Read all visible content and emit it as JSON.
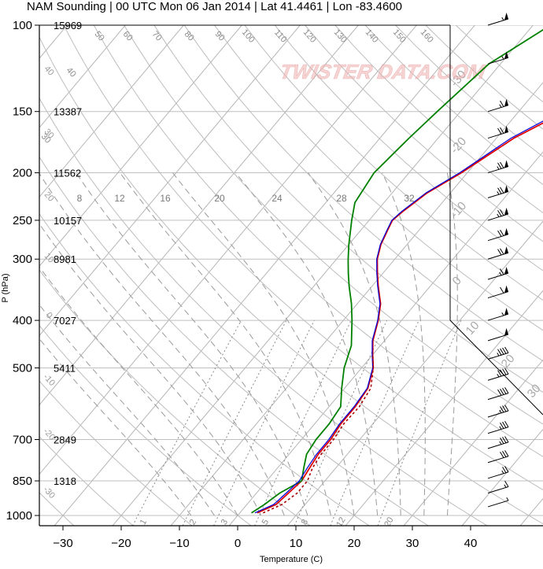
{
  "title": "NAM Sounding | 00 UTC Mon 06 Jan 2014 | Lat 41.4461 | Lon -83.4600",
  "watermark": "TWISTER DATA.COM",
  "chart_data": {
    "type": "line",
    "subtype": "skew-T log-P sounding",
    "xlabel": "Temperature (C)",
    "ylabel": "P (hPa)",
    "x_ticks": [
      -30,
      -20,
      -10,
      0,
      10,
      20,
      30,
      40
    ],
    "y_ticks": [
      100,
      150,
      200,
      250,
      300,
      400,
      500,
      700,
      850,
      1000
    ],
    "heights_m": [
      {
        "p": 100,
        "label": "15969"
      },
      {
        "p": 150,
        "label": "13387"
      },
      {
        "p": 200,
        "label": "11562"
      },
      {
        "p": 250,
        "label": "10157"
      },
      {
        "p": 300,
        "label": "8981"
      },
      {
        "p": 400,
        "label": "7027"
      },
      {
        "p": 500,
        "label": "5411"
      },
      {
        "p": 700,
        "label": "2849"
      },
      {
        "p": 850,
        "label": "1318"
      }
    ],
    "dry_adiabat_labels": [
      "30",
      "40",
      "50",
      "60",
      "70",
      "80",
      "90",
      "100",
      "110",
      "120",
      "130",
      "140",
      "150",
      "160"
    ],
    "isotherm_skewed_labels": [
      "-30",
      "-20",
      "-10",
      "0",
      "10",
      "20",
      "30"
    ],
    "left_isotherm_labels": [
      "40",
      "30",
      "20",
      "10",
      "0",
      "-10",
      "-20",
      "-30"
    ],
    "moist_adiabat_labels": [
      "8",
      "12",
      "16",
      "20",
      "24",
      "28",
      "32"
    ],
    "mixing_ratio_labels": [
      "1",
      "2",
      "3",
      "5",
      "8",
      "12",
      "20"
    ],
    "series": [
      {
        "name": "Temperature",
        "color": "#e00000",
        "points": [
          [
            988,
            3
          ],
          [
            950,
            5
          ],
          [
            900,
            5.5
          ],
          [
            850,
            6
          ],
          [
            800,
            5.5
          ],
          [
            750,
            5
          ],
          [
            700,
            5
          ],
          [
            650,
            4.5
          ],
          [
            600,
            4.5
          ],
          [
            550,
            4
          ],
          [
            500,
            2
          ],
          [
            470,
            0
          ],
          [
            440,
            -2
          ],
          [
            400,
            -4
          ],
          [
            370,
            -6
          ],
          [
            340,
            -9
          ],
          [
            320,
            -11
          ],
          [
            300,
            -13
          ],
          [
            280,
            -14.5
          ],
          [
            260,
            -15.5
          ],
          [
            250,
            -16
          ],
          [
            240,
            -15.5
          ],
          [
            220,
            -14
          ],
          [
            200,
            -11
          ],
          [
            170,
            -7
          ],
          [
            150,
            -2
          ],
          [
            120,
            4
          ],
          [
            100,
            12
          ]
        ]
      },
      {
        "name": "Dewpoint",
        "color": "#008000",
        "points": [
          [
            988,
            2
          ],
          [
            950,
            3
          ],
          [
            900,
            4
          ],
          [
            850,
            6
          ],
          [
            800,
            4.5
          ],
          [
            750,
            3
          ],
          [
            700,
            2.5
          ],
          [
            650,
            2.5
          ],
          [
            600,
            2
          ],
          [
            550,
            -0.5
          ],
          [
            500,
            -3
          ],
          [
            450,
            -5
          ],
          [
            400,
            -8.5
          ],
          [
            370,
            -11
          ],
          [
            340,
            -14
          ],
          [
            320,
            -16
          ],
          [
            300,
            -18
          ],
          [
            280,
            -20
          ],
          [
            250,
            -23
          ],
          [
            230,
            -25
          ],
          [
            200,
            -26
          ],
          [
            170,
            -25
          ],
          [
            150,
            -24
          ],
          [
            120,
            -22
          ],
          [
            100,
            -17
          ]
        ]
      },
      {
        "name": "Virtual temperature",
        "color": "#0000dd",
        "points": [
          [
            988,
            2.6
          ],
          [
            950,
            4.6
          ],
          [
            900,
            5.1
          ],
          [
            850,
            5.6
          ],
          [
            800,
            5.1
          ],
          [
            750,
            4.7
          ],
          [
            700,
            4.7
          ],
          [
            650,
            4.3
          ],
          [
            600,
            4.3
          ],
          [
            550,
            3.9
          ],
          [
            500,
            1.9
          ],
          [
            470,
            -0.1
          ],
          [
            440,
            -2.1
          ],
          [
            400,
            -4.1
          ],
          [
            370,
            -6.1
          ],
          [
            340,
            -9.1
          ],
          [
            320,
            -11.1
          ],
          [
            300,
            -13.1
          ],
          [
            280,
            -14.6
          ],
          [
            260,
            -15.6
          ],
          [
            250,
            -16.1
          ],
          [
            240,
            -15.7
          ],
          [
            220,
            -14.2
          ],
          [
            200,
            -11.3
          ],
          [
            170,
            -7.5
          ],
          [
            150,
            -2.7
          ],
          [
            120,
            3.2
          ],
          [
            100,
            11.2
          ]
        ]
      },
      {
        "name": "Parcel",
        "color": "#aa0000",
        "dashed": true,
        "points": [
          [
            988,
            4
          ],
          [
            950,
            6
          ],
          [
            900,
            7
          ],
          [
            850,
            7
          ],
          [
            800,
            6
          ],
          [
            750,
            5.5
          ],
          [
            700,
            5.5
          ],
          [
            650,
            5
          ],
          [
            600,
            5.2
          ],
          [
            550,
            4.5
          ],
          [
            500,
            2
          ],
          [
            470,
            0
          ]
        ]
      }
    ],
    "wind_barbs": [
      {
        "p": 100,
        "spd": 55
      },
      {
        "p": 120,
        "spd": 55
      },
      {
        "p": 150,
        "spd": 65
      },
      {
        "p": 170,
        "spd": 70
      },
      {
        "p": 200,
        "spd": 75
      },
      {
        "p": 225,
        "spd": 75
      },
      {
        "p": 250,
        "spd": 75
      },
      {
        "p": 275,
        "spd": 70
      },
      {
        "p": 300,
        "spd": 70
      },
      {
        "p": 330,
        "spd": 65
      },
      {
        "p": 360,
        "spd": 60
      },
      {
        "p": 400,
        "spd": 55
      },
      {
        "p": 440,
        "spd": 50
      },
      {
        "p": 480,
        "spd": 45
      },
      {
        "p": 530,
        "spd": 45
      },
      {
        "p": 580,
        "spd": 40
      },
      {
        "p": 630,
        "spd": 35
      },
      {
        "p": 680,
        "spd": 35
      },
      {
        "p": 730,
        "spd": 35
      },
      {
        "p": 780,
        "spd": 30
      },
      {
        "p": 840,
        "spd": 25
      },
      {
        "p": 900,
        "spd": 15
      },
      {
        "p": 960,
        "spd": 5
      }
    ]
  }
}
